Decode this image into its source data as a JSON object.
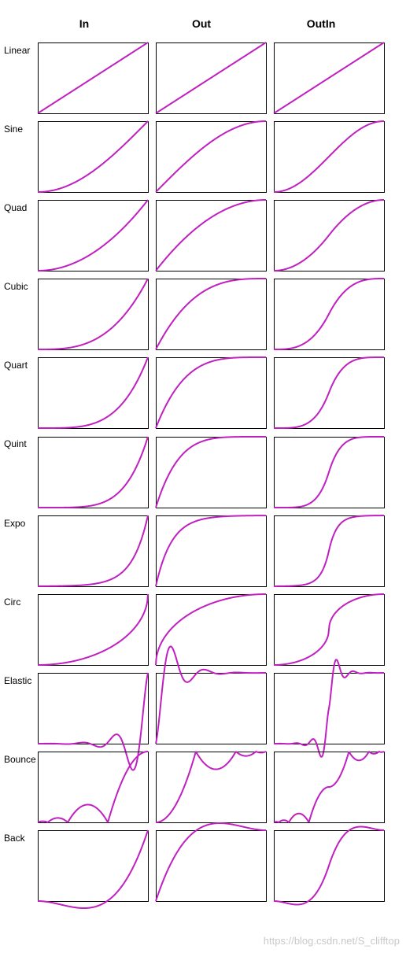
{
  "columns": [
    "In",
    "Out",
    "OutIn"
  ],
  "rows": [
    "Linear",
    "Sine",
    "Quad",
    "Cubic",
    "Quart",
    "Quint",
    "Expo",
    "Circ",
    "Elastic",
    "Bounce",
    "Back"
  ],
  "watermark": "https://blog.csdn.net/S_clifftop",
  "colors": {
    "curve": "#c020c0",
    "frame": "#000000",
    "background": "#ffffff",
    "watermark": "#c9c9c9"
  },
  "chart_data": {
    "type": "line",
    "layout": "grid of small multiples (rows = easing family, columns = easing mode)",
    "x_range": [
      0,
      1
    ],
    "y_range": [
      0,
      1
    ],
    "axes_visible": false,
    "grid": false,
    "description_of_series": "Each cell plots a standard easing function f(t) for t in [0,1]; Elastic, Bounce, Circ and Back curves overshoot the cell box.",
    "series": [
      {
        "row": "Linear",
        "col": "In"
      },
      {
        "row": "Linear",
        "col": "Out"
      },
      {
        "row": "Linear",
        "col": "OutIn"
      },
      {
        "row": "Sine",
        "col": "In"
      },
      {
        "row": "Sine",
        "col": "Out"
      },
      {
        "row": "Sine",
        "col": "OutIn"
      },
      {
        "row": "Quad",
        "col": "In"
      },
      {
        "row": "Quad",
        "col": "Out"
      },
      {
        "row": "Quad",
        "col": "OutIn"
      },
      {
        "row": "Cubic",
        "col": "In"
      },
      {
        "row": "Cubic",
        "col": "Out"
      },
      {
        "row": "Cubic",
        "col": "OutIn"
      },
      {
        "row": "Quart",
        "col": "In"
      },
      {
        "row": "Quart",
        "col": "Out"
      },
      {
        "row": "Quart",
        "col": "OutIn"
      },
      {
        "row": "Quint",
        "col": "In"
      },
      {
        "row": "Quint",
        "col": "Out"
      },
      {
        "row": "Quint",
        "col": "OutIn"
      },
      {
        "row": "Expo",
        "col": "In"
      },
      {
        "row": "Expo",
        "col": "Out"
      },
      {
        "row": "Expo",
        "col": "OutIn"
      },
      {
        "row": "Circ",
        "col": "In"
      },
      {
        "row": "Circ",
        "col": "Out"
      },
      {
        "row": "Circ",
        "col": "OutIn"
      },
      {
        "row": "Elastic",
        "col": "In"
      },
      {
        "row": "Elastic",
        "col": "Out"
      },
      {
        "row": "Elastic",
        "col": "OutIn"
      },
      {
        "row": "Bounce",
        "col": "In"
      },
      {
        "row": "Bounce",
        "col": "Out"
      },
      {
        "row": "Bounce",
        "col": "OutIn"
      },
      {
        "row": "Back",
        "col": "In"
      },
      {
        "row": "Back",
        "col": "Out"
      },
      {
        "row": "Back",
        "col": "OutIn"
      }
    ]
  }
}
